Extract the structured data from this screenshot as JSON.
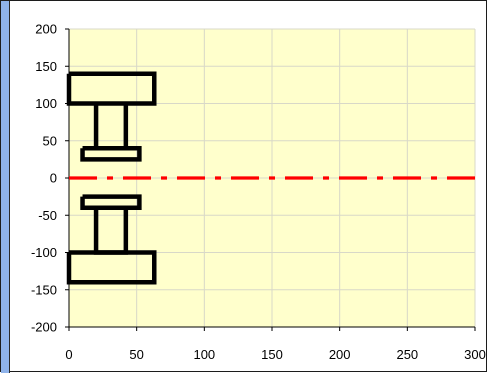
{
  "chart_data": {
    "type": "line",
    "title": "",
    "xlabel": "",
    "ylabel": "",
    "xlim": [
      0,
      300
    ],
    "ylim": [
      -200,
      200
    ],
    "x_ticks": [
      "0",
      "50",
      "100",
      "150",
      "200",
      "250",
      "300"
    ],
    "y_ticks": [
      "200",
      "150",
      "100",
      "50",
      "0",
      "-50",
      "-100",
      "-150",
      "-200"
    ],
    "grid": true,
    "legend": "none",
    "plot_background": "#ffffcc",
    "series": [
      {
        "color": "#000000",
        "style": "solid",
        "segments": [
          [
            [
              0,
              140
            ],
            [
              63,
              140
            ],
            [
              63,
              100
            ],
            [
              0,
              100
            ],
            [
              0,
              140
            ]
          ],
          [
            [
              20,
              100
            ],
            [
              20,
              40
            ],
            [
              42,
              40
            ],
            [
              42,
              100
            ]
          ],
          [
            [
              10,
              40
            ],
            [
              52,
              40
            ],
            [
              52,
              25
            ],
            [
              10,
              25
            ],
            [
              10,
              40
            ]
          ],
          [
            [
              10,
              -25
            ],
            [
              52,
              -25
            ],
            [
              52,
              -40
            ],
            [
              10,
              -40
            ],
            [
              10,
              -25
            ]
          ],
          [
            [
              20,
              -40
            ],
            [
              20,
              -100
            ],
            [
              42,
              -100
            ],
            [
              42,
              -40
            ]
          ],
          [
            [
              0,
              -100
            ],
            [
              63,
              -100
            ],
            [
              63,
              -140
            ],
            [
              0,
              -140
            ],
            [
              0,
              -100
            ]
          ]
        ]
      },
      {
        "color": "#ff0000",
        "style": "dash-dot",
        "segments": [
          [
            [
              0,
              0
            ],
            [
              300,
              0
            ]
          ]
        ]
      }
    ]
  }
}
